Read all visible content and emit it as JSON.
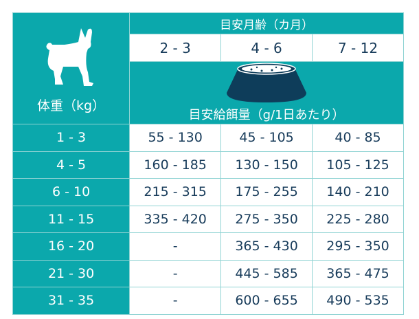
{
  "header": {
    "weight_label": "体重（kg）",
    "age_label": "目安月齢（カ月）",
    "ages": [
      "2 - 3",
      "4 - 6",
      "7 - 12"
    ],
    "amount_label": "目安給餌量（g/1日あたり）",
    "icons": [
      "dog-silhouette-icon",
      "food-bowl-icon"
    ]
  },
  "colors": {
    "teal": "#0ba8ac",
    "text": "#173b5a",
    "bowl": "#0e3d5a"
  },
  "rows": [
    {
      "weight": "1 - 3",
      "values": [
        "55 - 130",
        "45 - 105",
        "40 - 85"
      ]
    },
    {
      "weight": "4 - 5",
      "values": [
        "160 - 185",
        "130 - 150",
        "105 - 125"
      ]
    },
    {
      "weight": "6 - 10",
      "values": [
        "215 - 315",
        "175 - 255",
        "140 - 210"
      ]
    },
    {
      "weight": "11 - 15",
      "values": [
        "335 - 420",
        "275 - 350",
        "225 - 280"
      ]
    },
    {
      "weight": "16 - 20",
      "values": [
        "-",
        "365 - 430",
        "295 - 350"
      ]
    },
    {
      "weight": "21 - 30",
      "values": [
        "-",
        "445 - 585",
        "365 - 475"
      ]
    },
    {
      "weight": "31 - 35",
      "values": [
        "-",
        "600 - 655",
        "490 - 535"
      ]
    }
  ]
}
